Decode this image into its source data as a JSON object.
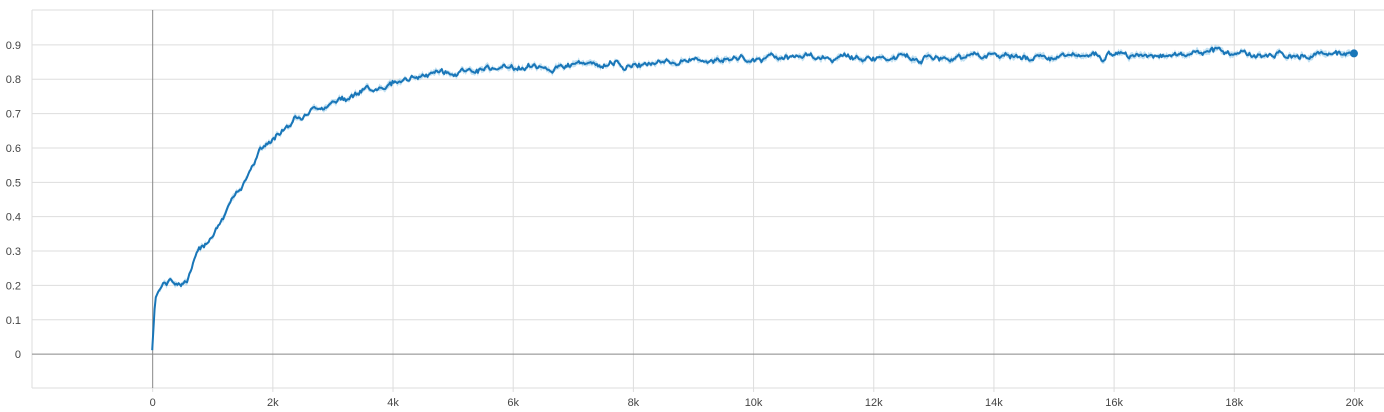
{
  "chart_data": {
    "type": "line",
    "title": "",
    "xlabel": "",
    "ylabel": "",
    "xlim": [
      -2000,
      20500
    ],
    "ylim": [
      -0.1,
      1.0
    ],
    "grid": true,
    "x_ticks": [
      {
        "value": 0,
        "label": "0"
      },
      {
        "value": 2000,
        "label": "2k"
      },
      {
        "value": 4000,
        "label": "4k"
      },
      {
        "value": 6000,
        "label": "6k"
      },
      {
        "value": 8000,
        "label": "8k"
      },
      {
        "value": 10000,
        "label": "10k"
      },
      {
        "value": 12000,
        "label": "12k"
      },
      {
        "value": 14000,
        "label": "14k"
      },
      {
        "value": 16000,
        "label": "16k"
      },
      {
        "value": 18000,
        "label": "18k"
      },
      {
        "value": 20000,
        "label": "20k"
      }
    ],
    "y_ticks": [
      {
        "value": 0,
        "label": "0"
      },
      {
        "value": 0.1,
        "label": "0.1"
      },
      {
        "value": 0.2,
        "label": "0.2"
      },
      {
        "value": 0.3,
        "label": "0.3"
      },
      {
        "value": 0.4,
        "label": "0.4"
      },
      {
        "value": 0.5,
        "label": "0.5"
      },
      {
        "value": 0.6,
        "label": "0.6"
      },
      {
        "value": 0.7,
        "label": "0.7"
      },
      {
        "value": 0.8,
        "label": "0.8"
      },
      {
        "value": 0.9,
        "label": "0.9"
      }
    ],
    "colors": {
      "line": "#1976b8",
      "band": "#a9d4ec",
      "grid": "#dddddd",
      "axis": "#888888"
    },
    "series": [
      {
        "x": [
          0,
          50,
          100,
          200,
          300,
          400,
          500,
          600,
          700,
          800,
          1000,
          1200,
          1400,
          1600,
          1800,
          2000,
          2200,
          2400,
          2600,
          2800,
          3000,
          3200,
          3400,
          3600,
          3800,
          4000,
          4200,
          4400,
          4600,
          4800,
          5000,
          5500,
          6000,
          6500,
          7000,
          7500,
          8000,
          8500,
          9000,
          9500,
          10000,
          10500,
          11000,
          11500,
          12000,
          12500,
          13000,
          13500,
          14000,
          14500,
          15000,
          15500,
          16000,
          16500,
          17000,
          17500,
          18000,
          18500,
          19000,
          19500,
          20000
        ],
        "y": [
          0.01,
          0.16,
          0.18,
          0.205,
          0.21,
          0.21,
          0.21,
          0.22,
          0.27,
          0.3,
          0.35,
          0.4,
          0.46,
          0.53,
          0.6,
          0.62,
          0.66,
          0.69,
          0.71,
          0.72,
          0.73,
          0.745,
          0.76,
          0.77,
          0.78,
          0.79,
          0.8,
          0.805,
          0.81,
          0.815,
          0.82,
          0.83,
          0.83,
          0.835,
          0.84,
          0.845,
          0.845,
          0.85,
          0.852,
          0.855,
          0.855,
          0.858,
          0.86,
          0.86,
          0.86,
          0.862,
          0.862,
          0.865,
          0.865,
          0.866,
          0.867,
          0.868,
          0.868,
          0.869,
          0.87,
          0.87,
          0.872,
          0.873,
          0.874,
          0.875,
          0.87
        ]
      }
    ]
  }
}
